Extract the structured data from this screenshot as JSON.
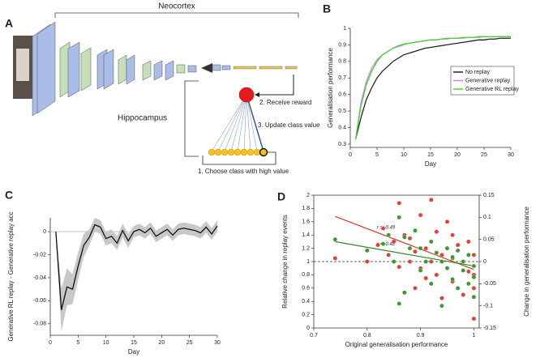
{
  "panels": [
    "A",
    "B",
    "C",
    "D"
  ],
  "diagram": {
    "neocortex": "Neocortex",
    "hippocampus": "Hippocampus",
    "step2": "2. Receive reward",
    "step3": "3. Update class value",
    "step1": "1. Choose class with high value"
  },
  "chart_data": [
    {
      "type": "line",
      "xlabel": "Day",
      "ylabel": "Generalisation performance",
      "x": [
        1,
        2,
        3,
        4,
        5,
        6,
        7,
        8,
        9,
        10,
        11,
        12,
        13,
        14,
        15,
        16,
        17,
        18,
        19,
        20,
        21,
        22,
        23,
        24,
        25,
        26,
        27,
        28,
        29,
        30
      ],
      "series": [
        {
          "name": "No replay",
          "color": "#222222",
          "values": [
            0.33,
            0.46,
            0.57,
            0.64,
            0.7,
            0.74,
            0.77,
            0.8,
            0.82,
            0.84,
            0.85,
            0.86,
            0.87,
            0.88,
            0.885,
            0.89,
            0.895,
            0.9,
            0.905,
            0.91,
            0.915,
            0.92,
            0.925,
            0.93,
            0.93,
            0.935,
            0.935,
            0.94,
            0.94,
            0.94
          ]
        },
        {
          "name": "Generative replay",
          "color": "#c58be0",
          "values": [
            0.33,
            0.55,
            0.68,
            0.76,
            0.81,
            0.84,
            0.86,
            0.88,
            0.89,
            0.9,
            0.91,
            0.915,
            0.92,
            0.925,
            0.93,
            0.93,
            0.935,
            0.935,
            0.94,
            0.94,
            0.94,
            0.945,
            0.945,
            0.945,
            0.95,
            0.95,
            0.95,
            0.95,
            0.95,
            0.95
          ]
        },
        {
          "name": "Generative RL replay",
          "color": "#4ccf38",
          "values": [
            0.33,
            0.53,
            0.66,
            0.74,
            0.8,
            0.84,
            0.86,
            0.88,
            0.895,
            0.905,
            0.91,
            0.915,
            0.92,
            0.925,
            0.93,
            0.93,
            0.935,
            0.94,
            0.94,
            0.94,
            0.945,
            0.945,
            0.945,
            0.95,
            0.95,
            0.95,
            0.95,
            0.95,
            0.95,
            0.95
          ]
        }
      ],
      "xlim": [
        0,
        30
      ],
      "xticks": [
        0,
        5,
        10,
        15,
        20,
        25,
        30
      ],
      "ylim": [
        0.28,
        1
      ],
      "yticks": [
        0.3,
        0.4,
        0.5,
        0.6,
        0.7,
        0.8,
        0.9,
        1
      ],
      "legend": "right"
    },
    {
      "type": "line",
      "xlabel": "Day",
      "ylabel": "Generative RL replay - Generative replay acc",
      "x": [
        1,
        2,
        3,
        4,
        5,
        6,
        7,
        8,
        9,
        10,
        11,
        12,
        13,
        14,
        15,
        16,
        17,
        18,
        19,
        20,
        21,
        22,
        23,
        24,
        25,
        26,
        27,
        28,
        29,
        30
      ],
      "series": [
        {
          "color": "#111111",
          "band_color": "#c8c8c8",
          "values": [
            0,
            -0.068,
            -0.048,
            -0.05,
            -0.03,
            -0.012,
            -0.005,
            0.006,
            0.004,
            -0.006,
            -0.004,
            -0.01,
            0.001,
            -0.008,
            0,
            0.002,
            -0.001,
            0.003,
            -0.004,
            -0.001,
            0.002,
            -0.003,
            0.002,
            0.003,
            0.002,
            0.001,
            -0.001,
            0.004,
            -0.002,
            0.005
          ],
          "errors": [
            0.003,
            0.019,
            0.016,
            0.013,
            0.012,
            0.01,
            0.007,
            0.006,
            0.006,
            0.006,
            0.006,
            0.006,
            0.006,
            0.006,
            0.005,
            0.005,
            0.005,
            0.005,
            0.005,
            0.005,
            0.005,
            0.005,
            0.005,
            0.005,
            0.005,
            0.005,
            0.005,
            0.005,
            0.005,
            0.005
          ]
        }
      ],
      "xlim": [
        0,
        30
      ],
      "xticks": [
        0,
        5,
        10,
        15,
        20,
        25,
        30
      ],
      "ylim": [
        -0.09,
        0.012
      ],
      "yticks": [
        0,
        -0.02,
        -0.04,
        -0.06,
        -0.08
      ]
    },
    {
      "type": "scatter",
      "xlabel": "Original generalisation performance",
      "ylabel": "Relative change in replay events",
      "y2label": "Change in generalisation performance",
      "y_color": "#d33a2f",
      "y2_color": "#2e8b2e",
      "series": [
        {
          "color": "#e0403a",
          "axis": "y",
          "x": [
            0.74,
            0.8,
            0.82,
            0.83,
            0.84,
            0.85,
            0.86,
            0.86,
            0.87,
            0.88,
            0.88,
            0.89,
            0.89,
            0.9,
            0.9,
            0.91,
            0.91,
            0.92,
            0.92,
            0.93,
            0.93,
            0.94,
            0.94,
            0.95,
            0.95,
            0.96,
            0.96,
            0.96,
            0.97,
            0.97,
            0.98,
            0.98,
            0.99,
            0.99,
            1,
            1,
            1,
            1
          ],
          "values": [
            1.05,
            1,
            1.25,
            1.5,
            1.1,
            1.3,
            1.88,
            0.92,
            1.4,
            1.35,
            1,
            1.15,
            0.6,
            1.7,
            0.9,
            1.2,
            0.75,
            1.93,
            1,
            1.45,
            0.8,
            1.1,
            0.45,
            1.6,
            0.9,
            1.4,
            1.05,
            0.7,
            1.25,
            0.6,
            1,
            0.5,
            1.3,
            0.85,
            1.1,
            0.8,
            0.6,
            0.14
          ]
        },
        {
          "color": "#3a9a32",
          "axis": "y2",
          "x": [
            0.74,
            0.8,
            0.83,
            0.84,
            0.85,
            0.86,
            0.87,
            0.88,
            0.89,
            0.9,
            0.9,
            0.91,
            0.92,
            0.92,
            0.93,
            0.94,
            0.94,
            0.95,
            0.95,
            0.96,
            0.96,
            0.97,
            0.97,
            0.98,
            0.98,
            0.99,
            0.99,
            1,
            1,
            1,
            0.86,
            0.87
          ],
          "values": [
            0.05,
            0.025,
            0.04,
            0.06,
            0,
            0.1,
            0.055,
            0.03,
            0.07,
            -0.02,
            0.03,
            0,
            0.045,
            -0.05,
            0.02,
            0,
            -0.1,
            0.03,
            -0.015,
            0.01,
            -0.04,
            0.025,
            -0.06,
            0,
            -0.02,
            0.015,
            -0.05,
            -0.01,
            -0.035,
            -0.08,
            -0.095,
            -0.07
          ]
        }
      ],
      "fits": [
        {
          "color": "#d33a2f",
          "axis": "y",
          "x": [
            0.74,
            1
          ],
          "values": [
            1.68,
            0.88
          ],
          "label": "r = -0.49"
        },
        {
          "color": "#2e8b2e",
          "axis": "y2",
          "x": [
            0.74,
            1
          ],
          "values": [
            0.045,
            -0.01
          ],
          "label": "r = -0.42"
        }
      ],
      "xlim": [
        0.7,
        1.01
      ],
      "xticks": [
        0.7,
        0.8,
        0.9,
        1
      ],
      "ylim": [
        0,
        2
      ],
      "yticks": [
        0,
        0.2,
        0.4,
        0.6,
        0.8,
        1,
        1.2,
        1.4,
        1.6,
        1.8,
        2
      ],
      "y2lim": [
        -0.15,
        0.15
      ],
      "y2ticks": [
        -0.15,
        -0.1,
        -0.05,
        0,
        0.05,
        0.1,
        0.15
      ]
    }
  ]
}
